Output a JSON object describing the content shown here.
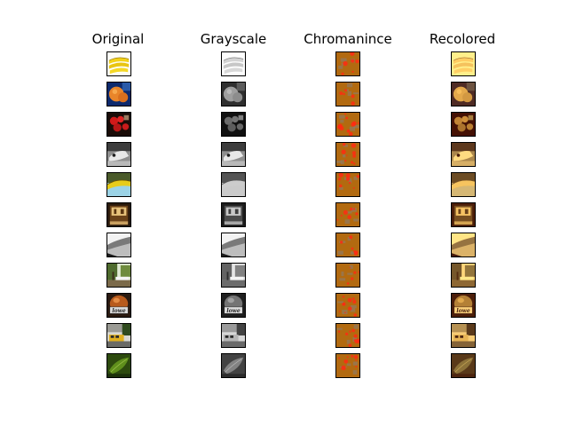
{
  "columns": [
    {
      "title": "Original"
    },
    {
      "title": "Grayscale"
    },
    {
      "title": "Chromanince"
    },
    {
      "title": "Recolored"
    }
  ],
  "rows": [
    {
      "subject": "bananas"
    },
    {
      "subject": "orange-on-blue"
    },
    {
      "subject": "red-fruit"
    },
    {
      "subject": "bw-animal"
    },
    {
      "subject": "banana-on-sky"
    },
    {
      "subject": "framed-room"
    },
    {
      "subject": "shaded-corner"
    },
    {
      "subject": "tree-garden"
    },
    {
      "subject": "jar-lowe"
    },
    {
      "subject": "street-bus"
    },
    {
      "subject": "green-leaf"
    }
  ],
  "label_text": {
    "jar": "lowe"
  },
  "colors": {
    "chroma_bg": "#b26a10",
    "chroma_spot": "#ff2a12",
    "chroma_gray": "#8b7d70",
    "frame": "#000000"
  }
}
